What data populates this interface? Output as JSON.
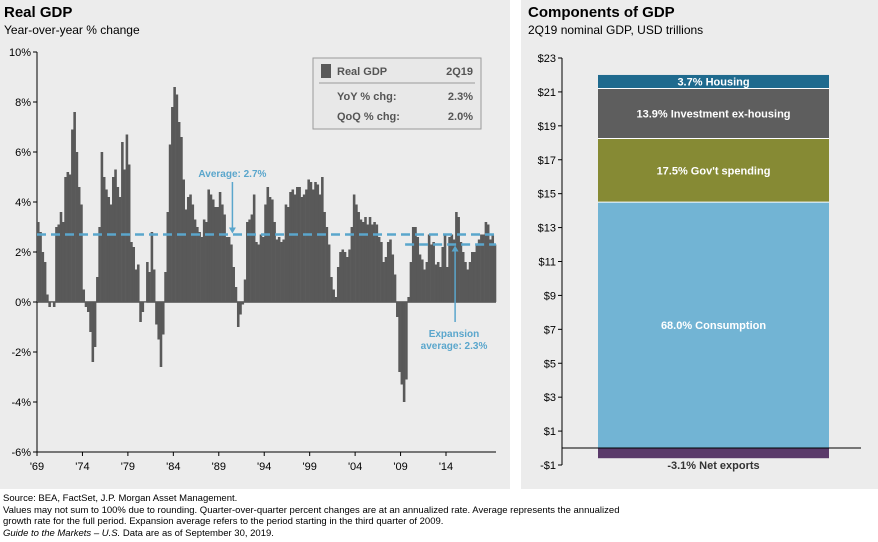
{
  "left": {
    "title": "Real GDP",
    "subtitle": "Year-over-year % change"
  },
  "right": {
    "title": "Components of GDP",
    "subtitle": "2Q19 nominal GDP, USD trillions"
  },
  "legend": {
    "series_label": "Real GDP",
    "period": "2Q19",
    "rows": [
      {
        "label": "YoY % chg:",
        "value": "2.3%"
      },
      {
        "label": "QoQ % chg:",
        "value": "2.0%"
      }
    ]
  },
  "footnotes": [
    "Source: BEA, FactSet, J.P. Morgan Asset Management.",
    "Values may not sum to 100% due to rounding. Quarter-over-quarter percent changes are at an annualized rate. Average represents the annualized",
    "growth rate for the full period. Expansion average refers to the period starting in the third quarter of 2009."
  ],
  "footnote_italic": "Guide to the Markets – U.S.",
  "footnote_tail": " Data are as of September 30, 2019.",
  "chart_data": [
    {
      "type": "bar",
      "title": "Real GDP",
      "subtitle": "Year-over-year % change",
      "ylim": [
        -6,
        10
      ],
      "ytick_labels": [
        "10%",
        "8%",
        "6%",
        "4%",
        "2%",
        "0%",
        "-2%",
        "-4%",
        "-6%"
      ],
      "ytick_values": [
        10,
        8,
        6,
        4,
        2,
        0,
        -2,
        -4,
        -6
      ],
      "xtick_labels": [
        "'69",
        "'74",
        "'79",
        "'84",
        "'89",
        "'94",
        "'99",
        "'04",
        "'09",
        "'14"
      ],
      "xtick_years": [
        1969,
        1974,
        1979,
        1984,
        1989,
        1994,
        1999,
        2004,
        2009,
        2014
      ],
      "x_start": 1969.0,
      "x_end": 2019.5,
      "bar_color": "#595959",
      "bar_width_years": 0.25,
      "years": [
        1969,
        1970,
        1971,
        1972,
        1973,
        1974,
        1975,
        1976,
        1977,
        1978,
        1979,
        1980,
        1981,
        1982,
        1983,
        1984,
        1985,
        1986,
        1987,
        1988,
        1989,
        1990,
        1991,
        1992,
        1993,
        1994,
        1995,
        1996,
        1997,
        1998,
        1999,
        2000,
        2001,
        2002,
        2003,
        2004,
        2005,
        2006,
        2007,
        2008,
        2009,
        2010,
        2011,
        2012,
        2013,
        2014,
        2015,
        2016,
        2017,
        2018,
        2019
      ],
      "quarterly_values": [
        [
          3.2,
          2.8,
          2.0,
          1.6
        ],
        [
          0.3,
          -0.2,
          0.0,
          -0.2
        ],
        [
          3.0,
          3.1,
          3.6,
          3.2
        ],
        [
          5.0,
          5.2,
          5.1,
          6.9
        ],
        [
          7.6,
          6.0,
          4.6,
          3.9
        ],
        [
          0.5,
          -0.2,
          -0.4,
          -1.2
        ],
        [
          -2.4,
          -1.8,
          1.0,
          3.0
        ],
        [
          6.0,
          5.0,
          4.5,
          4.2
        ],
        [
          3.9,
          5.0,
          5.3,
          4.6
        ],
        [
          4.2,
          6.4,
          5.3,
          6.7
        ],
        [
          5.5,
          2.4,
          2.2,
          1.3
        ],
        [
          1.5,
          -0.8,
          -0.4,
          0.0
        ],
        [
          1.6,
          1.2,
          2.8,
          1.3
        ],
        [
          -0.9,
          -1.5,
          -2.6,
          -1.3
        ],
        [
          1.2,
          3.6,
          6.3,
          7.8
        ],
        [
          8.6,
          8.3,
          7.2,
          6.6
        ],
        [
          4.9,
          3.7,
          4.2,
          4.3
        ],
        [
          3.9,
          3.3,
          3.0,
          2.8
        ],
        [
          2.6,
          3.3,
          3.2,
          4.5
        ],
        [
          4.3,
          4.1,
          3.8,
          3.8
        ],
        [
          4.4,
          3.9,
          3.5,
          2.6
        ],
        [
          2.6,
          2.3,
          1.4,
          0.6
        ],
        [
          -1.0,
          -0.5,
          -0.1,
          0.9
        ],
        [
          3.2,
          3.3,
          3.5,
          4.3
        ],
        [
          2.4,
          2.3,
          2.7,
          2.6
        ],
        [
          3.9,
          4.6,
          4.2,
          4.1
        ],
        [
          3.2,
          2.5,
          2.6,
          2.4
        ],
        [
          2.5,
          3.9,
          3.8,
          4.4
        ],
        [
          4.5,
          4.3,
          4.6,
          4.6
        ],
        [
          4.2,
          4.3,
          4.5,
          4.9
        ],
        [
          4.8,
          4.5,
          4.8,
          4.7
        ],
        [
          4.3,
          5.0,
          3.6,
          3.0
        ],
        [
          2.3,
          1.0,
          0.5,
          0.2
        ],
        [
          1.4,
          2.0,
          2.1,
          2.0
        ],
        [
          1.8,
          2.1,
          3.0,
          4.3
        ],
        [
          3.9,
          3.6,
          3.3,
          3.2
        ],
        [
          3.4,
          3.1,
          3.4,
          3.1
        ],
        [
          3.2,
          3.1,
          2.6,
          2.4
        ],
        [
          1.6,
          1.8,
          2.4,
          2.5
        ],
        [
          1.9,
          1.1,
          -0.6,
          -2.8
        ],
        [
          -3.3,
          -4.0,
          -3.1,
          0.2
        ],
        [
          1.6,
          3.0,
          3.0,
          2.6
        ],
        [
          1.9,
          1.7,
          1.3,
          1.6
        ],
        [
          2.7,
          2.3,
          2.4,
          1.5
        ],
        [
          1.6,
          1.4,
          2.2,
          2.7
        ],
        [
          1.4,
          2.6,
          2.7,
          2.5
        ],
        [
          3.6,
          3.4,
          2.4,
          2.0
        ],
        [
          1.6,
          1.3,
          1.6,
          2.0
        ],
        [
          2.0,
          2.3,
          2.5,
          2.7
        ],
        [
          2.7,
          3.2,
          3.1,
          2.5
        ],
        [
          2.7,
          2.3
        ]
      ],
      "average": {
        "value": 2.7,
        "label": "Average: 2.7%"
      },
      "expansion_average": {
        "value": 2.3,
        "start": 2009.5,
        "label_line1": "Expansion",
        "label_line2": "average: 2.3%"
      },
      "reference_line_color": "#5aa6cc"
    },
    {
      "type": "bar",
      "subtype": "stacked",
      "title": "Components of GDP",
      "subtitle": "2Q19 nominal GDP, USD trillions",
      "ylim": [
        -1,
        23
      ],
      "ytick_labels": [
        "$23",
        "$21",
        "$19",
        "$17",
        "$15",
        "$13",
        "$11",
        "$9",
        "$7",
        "$5",
        "$3",
        "$1",
        "-$1"
      ],
      "ytick_values": [
        23,
        21,
        19,
        17,
        15,
        13,
        11,
        9,
        7,
        5,
        3,
        1,
        -1
      ],
      "segments": [
        {
          "label": "-3.1% Net exports",
          "start": 0,
          "end": -0.6,
          "color": "#5a3a6a",
          "label_outside": true
        },
        {
          "label": "68.0% Consumption",
          "start": 0,
          "end": 14.5,
          "color": "#72b4d4"
        },
        {
          "label": "17.5% Gov't  spending",
          "start": 14.5,
          "end": 18.25,
          "color": "#868a34"
        },
        {
          "label": "13.9% Investment ex-housing",
          "start": 18.25,
          "end": 21.2,
          "color": "#5e5e5e"
        },
        {
          "label": "3.7% Housing",
          "start": 21.2,
          "end": 22.0,
          "color": "#1f6a8e"
        }
      ]
    }
  ]
}
